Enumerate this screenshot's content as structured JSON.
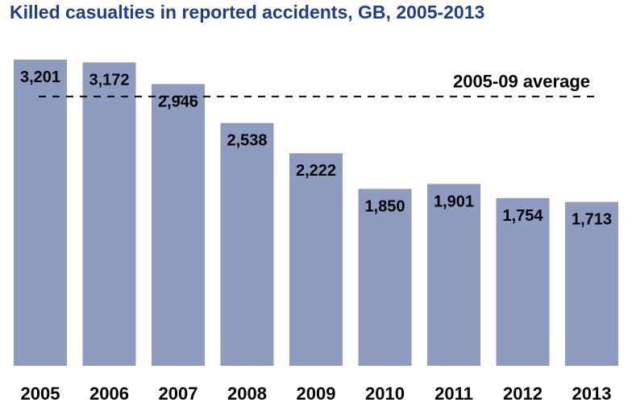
{
  "chart_data": {
    "type": "bar",
    "title": "Killed casualties in reported accidents, GB, 2005-2013",
    "xlabel": "",
    "ylabel": "",
    "categories": [
      "2005",
      "2006",
      "2007",
      "2008",
      "2009",
      "2010",
      "2011",
      "2012",
      "2013"
    ],
    "values": [
      3201,
      3172,
      2946,
      2538,
      2222,
      1850,
      1901,
      1754,
      1713
    ],
    "value_labels": [
      "3,201",
      "3,172",
      "2,946",
      "2,538",
      "2,222",
      "1,850",
      "1,901",
      "1,754",
      "1,713"
    ],
    "ylim": [
      0,
      3201
    ],
    "grid": false,
    "bar_color": "#8e9dbf",
    "title_color": "#1f3e8a",
    "reference_line": {
      "label": "2005-09 average",
      "value": 2816,
      "style": "dashed"
    }
  }
}
